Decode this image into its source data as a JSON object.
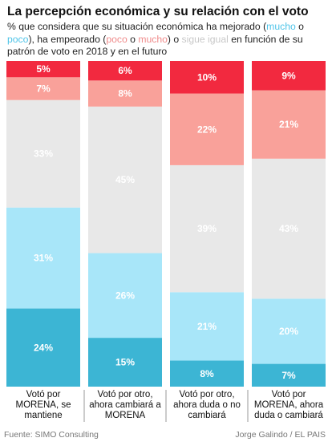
{
  "title": "La percepción económica y su relación con el voto",
  "subtitle": {
    "part1": "% que considera que su situación económica ha mejorado (",
    "mucho_mejor": "mucho",
    "part2": " o ",
    "poco_mejor": "poco",
    "part3": "), ha empeorado (",
    "poco_peor": "poco",
    "part4": " o ",
    "mucho_peor": "mucho",
    "part5": ") o ",
    "igual": "sigue igual",
    "part6": " en función de su patrón de voto en 2018 y en el futuro"
  },
  "footer": {
    "source": "Fuente: SIMO Consulting",
    "credit": "Jorge Galindo / EL PAIS"
  },
  "chart_data": {
    "type": "bar",
    "stacked": true,
    "normalized": true,
    "categories": [
      [
        "Votó por",
        "MORENA, se",
        "mantiene"
      ],
      [
        "Votó por otro,",
        "ahora cambiará a",
        "MORENA"
      ],
      [
        "Votó por otro,",
        "ahora duda o no",
        "cambiará"
      ],
      [
        "Votó por",
        "MORENA, ahora",
        "duda o cambiará"
      ]
    ],
    "series": [
      {
        "name": "mucho mejor",
        "color": "#3cb5d4",
        "text_color": "#ffffff",
        "values": [
          24,
          15,
          8,
          7
        ]
      },
      {
        "name": "poco mejor",
        "color": "#a8e6f9",
        "text_color": "#ffffff",
        "values": [
          31,
          26,
          21,
          20
        ]
      },
      {
        "name": "sigue igual",
        "color": "#e8e8e8",
        "text_color": "#ffffff",
        "values": [
          33,
          45,
          39,
          43
        ]
      },
      {
        "name": "poco peor",
        "color": "#f9a19a",
        "text_color": "#ffffff",
        "values": [
          7,
          8,
          22,
          21
        ]
      },
      {
        "name": "mucho peor",
        "color": "#f2293f",
        "text_color": "#ffffff",
        "values": [
          5,
          6,
          10,
          9
        ]
      }
    ],
    "value_suffix": "%"
  }
}
